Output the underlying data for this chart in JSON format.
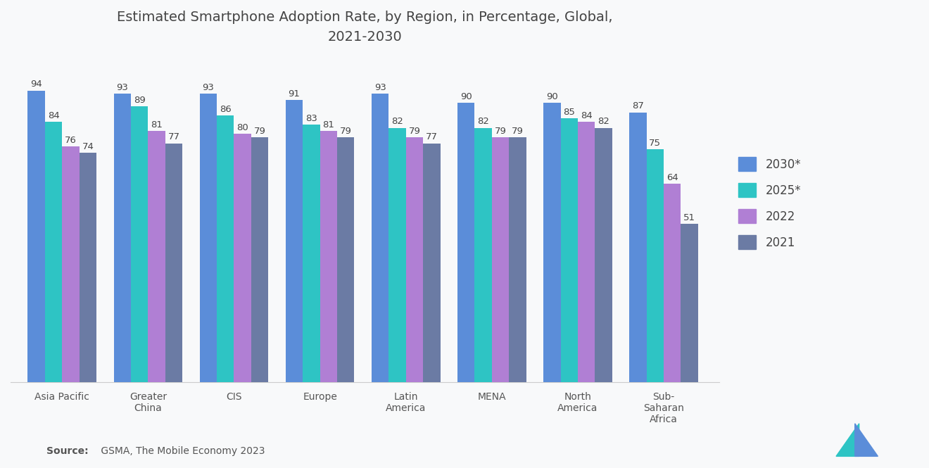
{
  "title": "Estimated Smartphone Adoption Rate, by Region, in Percentage, Global,\n2021-2030",
  "categories": [
    "Asia Pacific",
    "Greater\nChina",
    "CIS",
    "Europe",
    "Latin\nAmerica",
    "MENA",
    "North\nAmerica",
    "Sub-\nSaharan\nAfrica"
  ],
  "series": {
    "2030*": [
      94,
      93,
      93,
      91,
      93,
      90,
      90,
      87
    ],
    "2025*": [
      84,
      89,
      86,
      83,
      82,
      82,
      85,
      75
    ],
    "2022": [
      76,
      81,
      80,
      81,
      79,
      79,
      84,
      64
    ],
    "2021": [
      74,
      77,
      79,
      79,
      77,
      79,
      82,
      51
    ]
  },
  "colors": {
    "2030*": "#5B8DD9",
    "2025*": "#2EC4C4",
    "2022": "#B07FD4",
    "2021": "#6B7BA4"
  },
  "legend_labels": [
    "2030*",
    "2025*",
    "2022",
    "2021"
  ],
  "source_bold": "Source:",
  "source_rest": " GSMA, The Mobile Economy 2023",
  "background_color": "#F8F9FA",
  "bar_width": 0.2,
  "ylim": [
    0,
    105
  ],
  "label_fontsize": 9.5,
  "title_fontsize": 14,
  "tick_fontsize": 10,
  "legend_fontsize": 12
}
